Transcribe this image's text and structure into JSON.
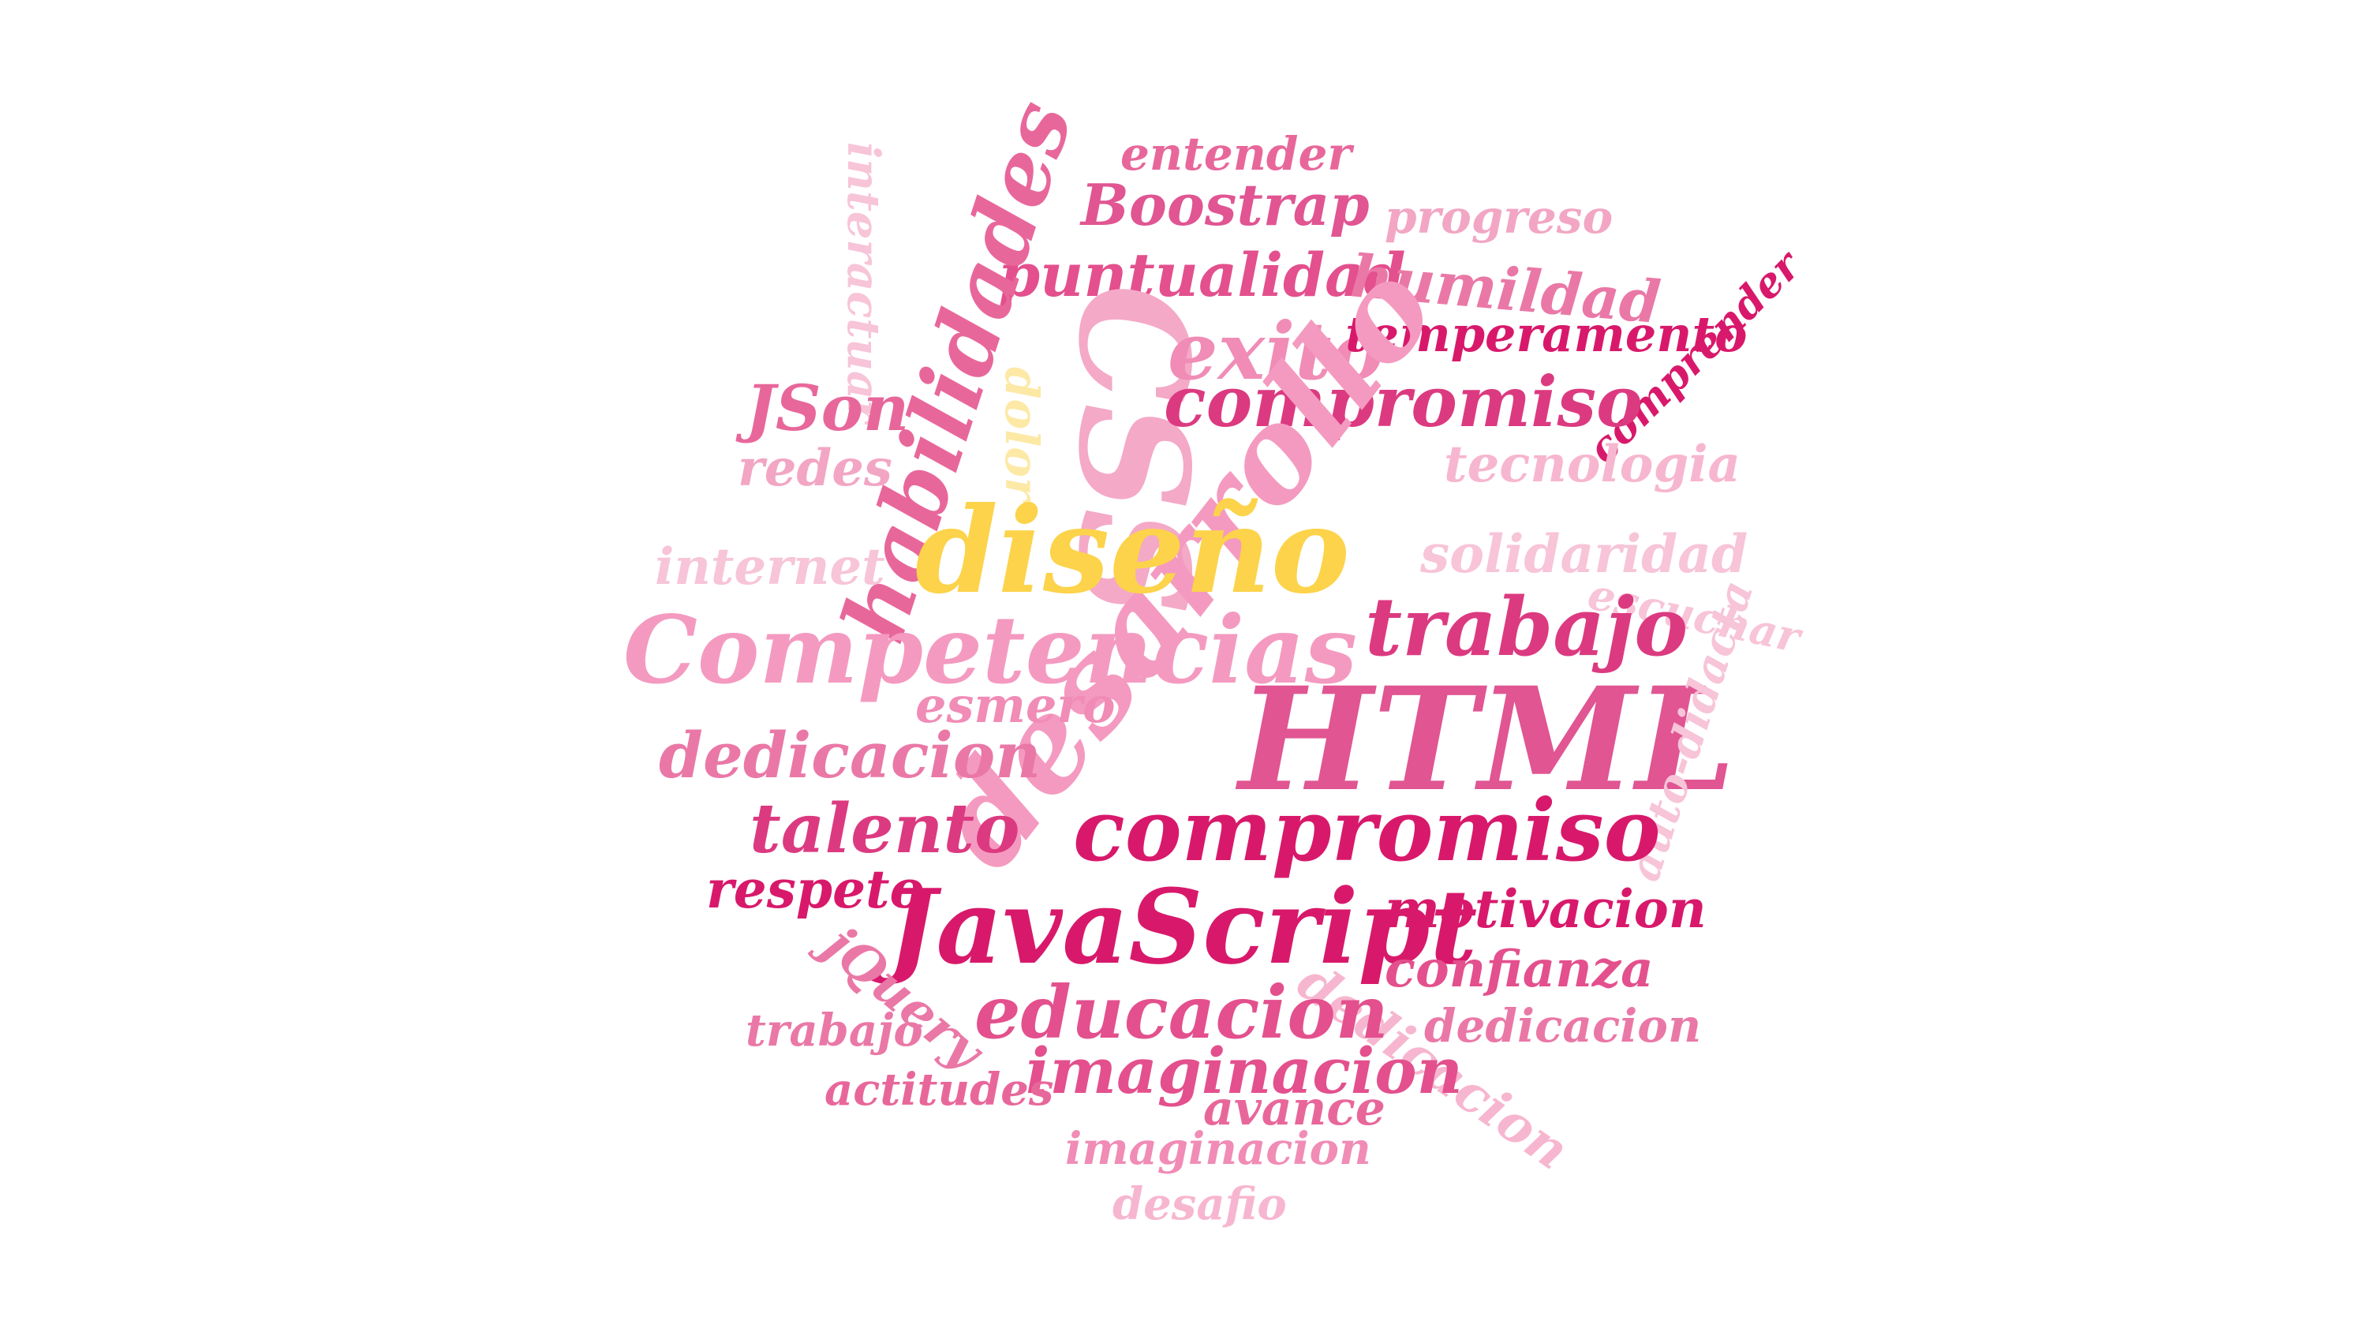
{
  "word_cloud": {
    "words": [
      {
        "text": "entender",
        "color": "#e8679b"
      },
      {
        "text": "Boostrap",
        "color": "#e05592"
      },
      {
        "text": "progreso",
        "color": "#f2a6c4"
      },
      {
        "text": "interactuar",
        "color": "#f7c4d8"
      },
      {
        "text": "puntualidad",
        "color": "#e3508d"
      },
      {
        "text": "humildad",
        "color": "#ea78a7"
      },
      {
        "text": "habilidades",
        "color": "#e8679b"
      },
      {
        "text": "CSS",
        "color": "#f4a9c7"
      },
      {
        "text": "exito",
        "color": "#f08cb6"
      },
      {
        "text": "temperamento",
        "color": "#d8196b"
      },
      {
        "text": "comprender",
        "color": "#d8196b"
      },
      {
        "text": "JSon",
        "color": "#e8679b"
      },
      {
        "text": "dolor",
        "color": "#fde9a6"
      },
      {
        "text": "compromiso",
        "color": "#dc3a80"
      },
      {
        "text": "redes",
        "color": "#f2a6c4"
      },
      {
        "text": "tecnologia",
        "color": "#f7b6cf"
      },
      {
        "text": "desarrollo",
        "color": "#f49ac0"
      },
      {
        "text": "diseño",
        "color": "#fcd34a"
      },
      {
        "text": "internet",
        "color": "#f7c4d8"
      },
      {
        "text": "solidaridad",
        "color": "#f7c4d8"
      },
      {
        "text": "escuchar",
        "color": "#f7c4d8"
      },
      {
        "text": "Competencias",
        "color": "#f49ac0"
      },
      {
        "text": "trabajo",
        "color": "#dc3a80"
      },
      {
        "text": "HTML",
        "color": "#e05592"
      },
      {
        "text": "esmero",
        "color": "#f08cb6"
      },
      {
        "text": "dedicacion",
        "color": "#ea78a7"
      },
      {
        "text": "auto-didacta",
        "color": "#f7c4d8"
      },
      {
        "text": "talento",
        "color": "#dc3a80"
      },
      {
        "text": "compromiso",
        "color": "#d8196b"
      },
      {
        "text": "respeto",
        "color": "#d8196b"
      },
      {
        "text": "JavaScript",
        "color": "#d8196b"
      },
      {
        "text": "motivacion",
        "color": "#d8196b"
      },
      {
        "text": "jQuery",
        "color": "#ea78a7"
      },
      {
        "text": "confianza",
        "color": "#e3508d"
      },
      {
        "text": "dedicacion",
        "color": "#f7b6cf"
      },
      {
        "text": "educacion",
        "color": "#e3508d"
      },
      {
        "text": "trabajo",
        "color": "#ea78a7"
      },
      {
        "text": "dedicacion",
        "color": "#ea78a7"
      },
      {
        "text": "imaginacion",
        "color": "#e3508d"
      },
      {
        "text": "actitudes",
        "color": "#e8679b"
      },
      {
        "text": "avance",
        "color": "#e8679b"
      },
      {
        "text": "imaginacion",
        "color": "#f08cb6"
      },
      {
        "text": "desafio",
        "color": "#f7b6cf"
      }
    ]
  }
}
